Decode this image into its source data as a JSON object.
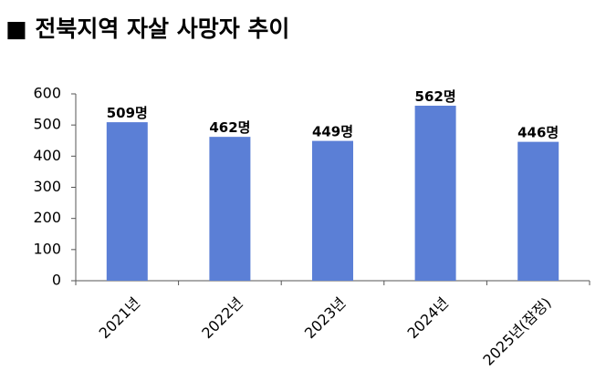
{
  "chart_data": {
    "type": "bar",
    "title": "■ 전북지역 자살 사망자 추이",
    "categories": [
      "2021년",
      "2022년",
      "2023년",
      "2024년",
      "2025년(잠정)"
    ],
    "values": [
      509,
      462,
      449,
      562,
      446
    ],
    "value_labels": [
      "509명",
      "462명",
      "449명",
      "562명",
      "446명"
    ],
    "color": "#5b7fd6",
    "ylim": [
      0,
      600
    ],
    "yticks": [
      0,
      100,
      200,
      300,
      400,
      500,
      600
    ],
    "grid": false
  }
}
